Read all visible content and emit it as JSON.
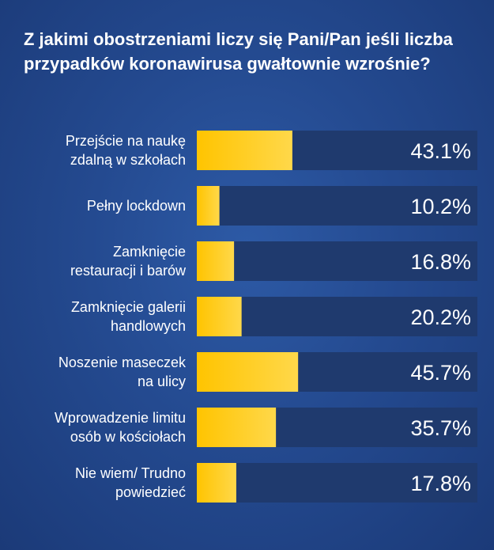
{
  "chart_data": {
    "type": "bar",
    "orientation": "horizontal",
    "title": "Z jakimi obostrzeniami liczy się Pani/Pan jeśli liczba przypadków koronawirusa gwałtownie wzrośnie?",
    "categories": [
      [
        "Przejście na naukę",
        "zdalną w szkołach"
      ],
      [
        "Pełny lockdown"
      ],
      [
        "Zamknięcie",
        "restauracji i barów"
      ],
      [
        "Zamknięcie galerii",
        "handlowych"
      ],
      [
        "Noszenie maseczek",
        "na ulicy"
      ],
      [
        "Wprowadzenie limitu",
        "osób w kościołach"
      ],
      [
        "Nie wiem/ Trudno",
        "powiedzieć"
      ]
    ],
    "values": [
      43.1,
      10.2,
      16.8,
      20.2,
      45.7,
      35.7,
      17.8
    ],
    "value_labels": [
      "43.1%",
      "10.2%",
      "16.8%",
      "20.2%",
      "45.7%",
      "35.7%",
      "17.8%"
    ],
    "xlim": [
      0,
      100
    ],
    "grid": false,
    "legend": "none",
    "colors": {
      "bar_fill_start": "#ffc400",
      "bar_fill_end": "#ffd84a",
      "track": "#1f3a6e",
      "text": "#ffffff"
    }
  }
}
